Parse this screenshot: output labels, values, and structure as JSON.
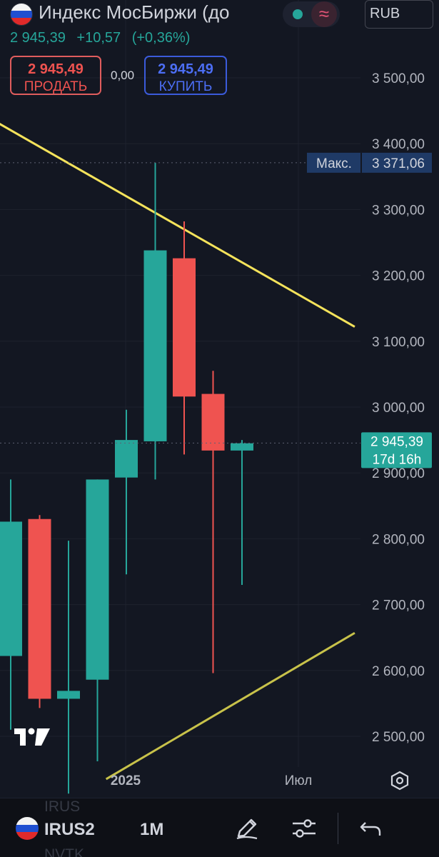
{
  "header": {
    "title": "Индекс МосБиржи (до",
    "last_price": "2 945,39",
    "change_abs": "+10,57",
    "change_pct": "(+0,36%)",
    "currency": "RUB",
    "status_icon": "market-open-dot",
    "wave_icon": "approx-wave-icon"
  },
  "trade": {
    "sell_price": "2 945,49",
    "sell_label": "ПРОДАТЬ",
    "buy_price": "2 945,49",
    "buy_label": "КУПИТЬ",
    "spread": "0,00"
  },
  "chart_data": {
    "type": "candlestick",
    "ylim": [
      2450,
      3580
    ],
    "y_ticks": [
      "3 500,00",
      "3 400,00",
      "3 300,00",
      "3 200,00",
      "3 100,00",
      "3 000,00",
      "2 900,00",
      "2 800,00",
      "2 700,00",
      "2 600,00",
      "2 500,00"
    ],
    "y_tick_values": [
      3500,
      3400,
      3300,
      3200,
      3100,
      3000,
      2900,
      2800,
      2700,
      2600,
      2500
    ],
    "x_labels": [
      "2025",
      "Июл"
    ],
    "candles": [
      {
        "open": 2622,
        "high": 2890,
        "low": 2510,
        "close": 2826,
        "dir": "up"
      },
      {
        "open": 2830,
        "high": 2836,
        "low": 2543,
        "close": 2557,
        "dir": "down"
      },
      {
        "open": 2557,
        "high": 2797,
        "low": 2413,
        "close": 2569,
        "dir": "up"
      },
      {
        "open": 2586,
        "high": 2890,
        "low": 2462,
        "close": 2890,
        "dir": "up"
      },
      {
        "open": 2893,
        "high": 2996,
        "low": 2746,
        "close": 2950,
        "dir": "up"
      },
      {
        "open": 2948,
        "high": 3371,
        "low": 2890,
        "close": 3238,
        "dir": "up"
      },
      {
        "open": 3226,
        "high": 3282,
        "low": 2928,
        "close": 3016,
        "dir": "down"
      },
      {
        "open": 3020,
        "high": 3055,
        "low": 2596,
        "close": 2934,
        "dir": "down"
      },
      {
        "open": 2934,
        "high": 2950,
        "low": 2730,
        "close": 2945,
        "dir": "up"
      }
    ],
    "trendlines": [
      {
        "from": [
          -0.5,
          3433
        ],
        "to": [
          11.9,
          3122
        ],
        "color": "#f5e35b"
      },
      {
        "from": [
          3.3,
          2435
        ],
        "to": [
          11.9,
          2657
        ],
        "color": "#c8c24a"
      }
    ],
    "max_marker": {
      "label": "Макс.",
      "value_text": "3 371,06",
      "value": 3371.06
    },
    "last_marker": {
      "value_text": "2 945,39",
      "countdown": "17d 16h",
      "value": 2945.39
    },
    "colors": {
      "up": "#26a69a",
      "down": "#ef5350",
      "background": "#131722",
      "grid": "#1e222d",
      "axis_text": "#b2b5be",
      "max_badge": "#1f3a66"
    }
  },
  "bottom_bar": {
    "symbol": "IRUS2",
    "interval": "1M",
    "ghost_top": "IRUS",
    "ghost_bottom": "NVTK",
    "icons": [
      "pen-icon",
      "sliders-icon",
      "undo-icon"
    ]
  }
}
